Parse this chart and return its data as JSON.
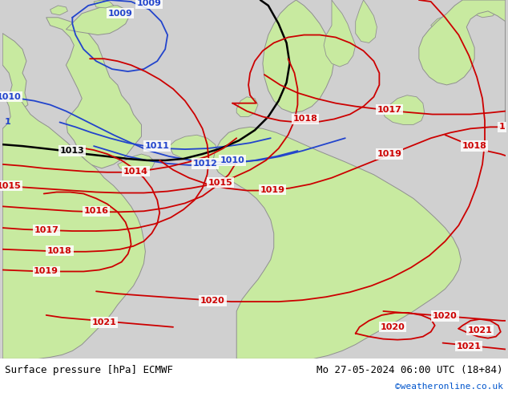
{
  "title_left": "Surface pressure [hPa] ECMWF",
  "title_right": "Mo 27-05-2024 06:00 UTC (18+84)",
  "credit": "©weatheronline.co.uk",
  "bg_color": "#d0d0d0",
  "land_color": "#c8eaa0",
  "coast_color": "#909090",
  "bottom_bar_color": "#ffffff",
  "blue": "#2244cc",
  "black": "#000000",
  "red": "#cc0000",
  "font_family": "monospace"
}
